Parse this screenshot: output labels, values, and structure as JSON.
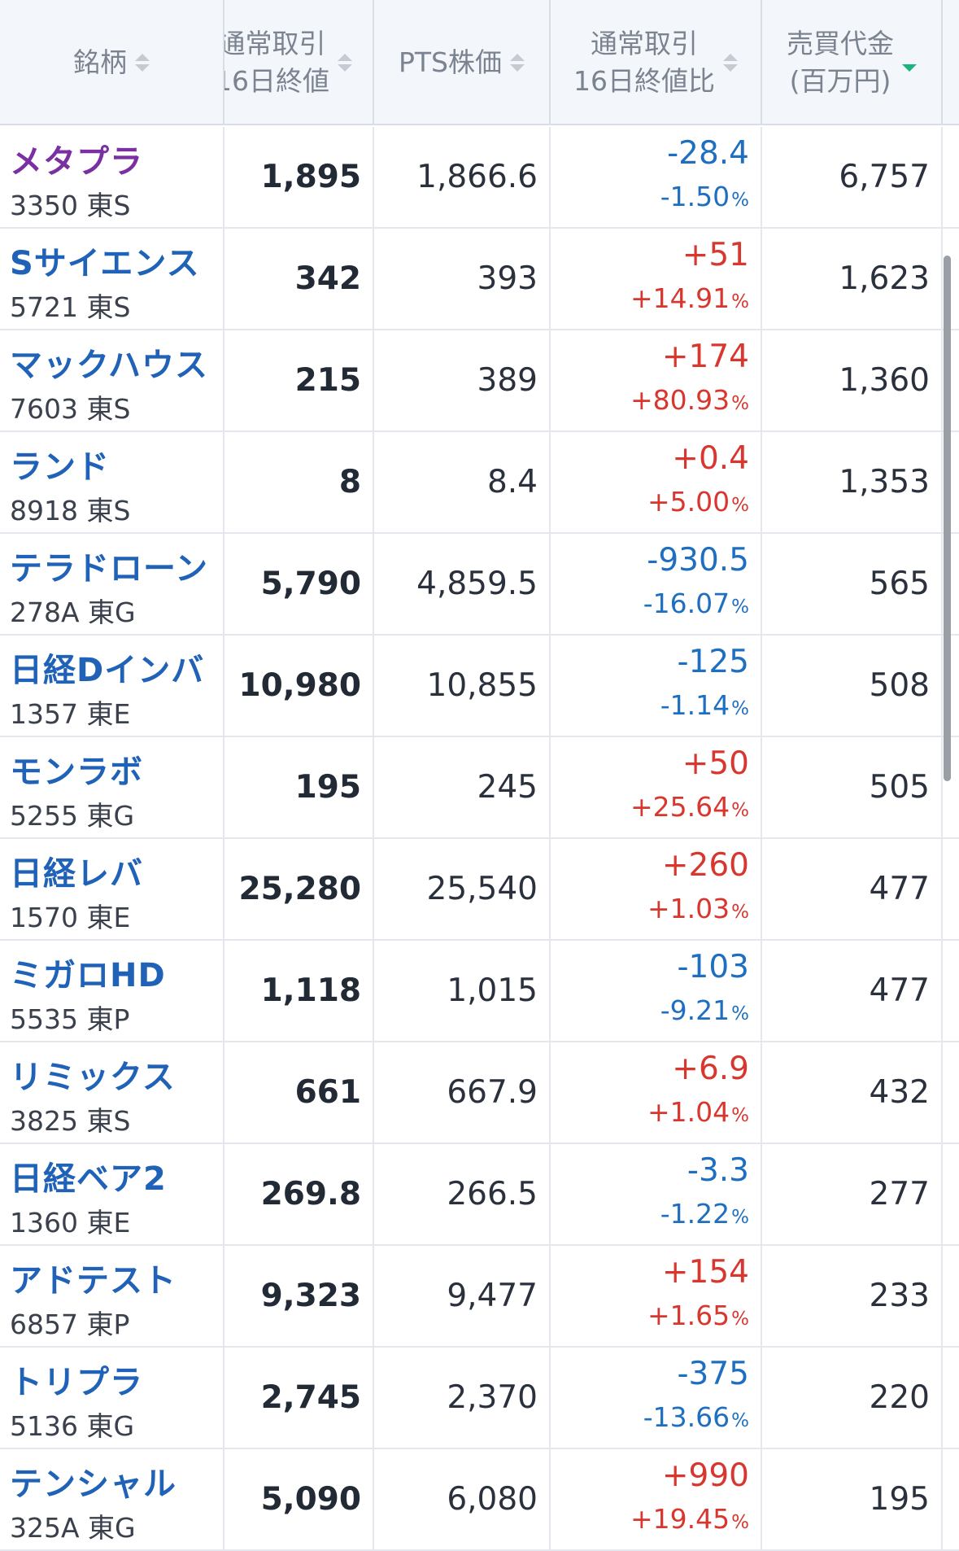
{
  "headers": {
    "name": "銘柄",
    "close_line1": "通常取引",
    "close_line2": "16日終値",
    "pts": "PTS株価",
    "change_line1": "通常取引",
    "change_line2": "16日終値比",
    "volume_line1": "売買代金",
    "volume_line2": "(百万円)"
  },
  "colors": {
    "up": "#d8372f",
    "down": "#1f6fc0",
    "link": "#1f62b8",
    "visited_link": "#7a2fa3",
    "sort_active": "#1bb47d"
  },
  "rows": [
    {
      "name": "メタプラ",
      "code": "3350 東S",
      "close": "1,895",
      "pts": "1,866.6",
      "chg": "-28.4",
      "pct": "-1.50",
      "dir": "down",
      "vol": "6,757",
      "visited": true
    },
    {
      "name": "Sサイエンス",
      "code": "5721 東S",
      "close": "342",
      "pts": "393",
      "chg": "+51",
      "pct": "+14.91",
      "dir": "up",
      "vol": "1,623"
    },
    {
      "name": "マックハウス",
      "code": "7603 東S",
      "close": "215",
      "pts": "389",
      "chg": "+174",
      "pct": "+80.93",
      "dir": "up",
      "vol": "1,360"
    },
    {
      "name": "ランド",
      "code": "8918 東S",
      "close": "8",
      "pts": "8.4",
      "chg": "+0.4",
      "pct": "+5.00",
      "dir": "up",
      "vol": "1,353"
    },
    {
      "name": "テラドローン",
      "code": "278A 東G",
      "close": "5,790",
      "pts": "4,859.5",
      "chg": "-930.5",
      "pct": "-16.07",
      "dir": "down",
      "vol": "565"
    },
    {
      "name": "日経Dインバ",
      "code": "1357 東E",
      "close": "10,980",
      "pts": "10,855",
      "chg": "-125",
      "pct": "-1.14",
      "dir": "down",
      "vol": "508"
    },
    {
      "name": "モンラボ",
      "code": "5255 東G",
      "close": "195",
      "pts": "245",
      "chg": "+50",
      "pct": "+25.64",
      "dir": "up",
      "vol": "505"
    },
    {
      "name": "日経レバ",
      "code": "1570 東E",
      "close": "25,280",
      "pts": "25,540",
      "chg": "+260",
      "pct": "+1.03",
      "dir": "up",
      "vol": "477"
    },
    {
      "name": "ミガロHD",
      "code": "5535 東P",
      "close": "1,118",
      "pts": "1,015",
      "chg": "-103",
      "pct": "-9.21",
      "dir": "down",
      "vol": "477"
    },
    {
      "name": "リミックス",
      "code": "3825 東S",
      "close": "661",
      "pts": "667.9",
      "chg": "+6.9",
      "pct": "+1.04",
      "dir": "up",
      "vol": "432"
    },
    {
      "name": "日経ベア2",
      "code": "1360 東E",
      "close": "269.8",
      "pts": "266.5",
      "chg": "-3.3",
      "pct": "-1.22",
      "dir": "down",
      "vol": "277"
    },
    {
      "name": "アドテスト",
      "code": "6857 東P",
      "close": "9,323",
      "pts": "9,477",
      "chg": "+154",
      "pct": "+1.65",
      "dir": "up",
      "vol": "233"
    },
    {
      "name": "トリプラ",
      "code": "5136 東G",
      "close": "2,745",
      "pts": "2,370",
      "chg": "-375",
      "pct": "-13.66",
      "dir": "down",
      "vol": "220"
    },
    {
      "name": "テンシャル",
      "code": "325A 東G",
      "close": "5,090",
      "pts": "6,080",
      "chg": "+990",
      "pct": "+19.45",
      "dir": "up",
      "vol": "195"
    }
  ],
  "pct_symbol": "%"
}
